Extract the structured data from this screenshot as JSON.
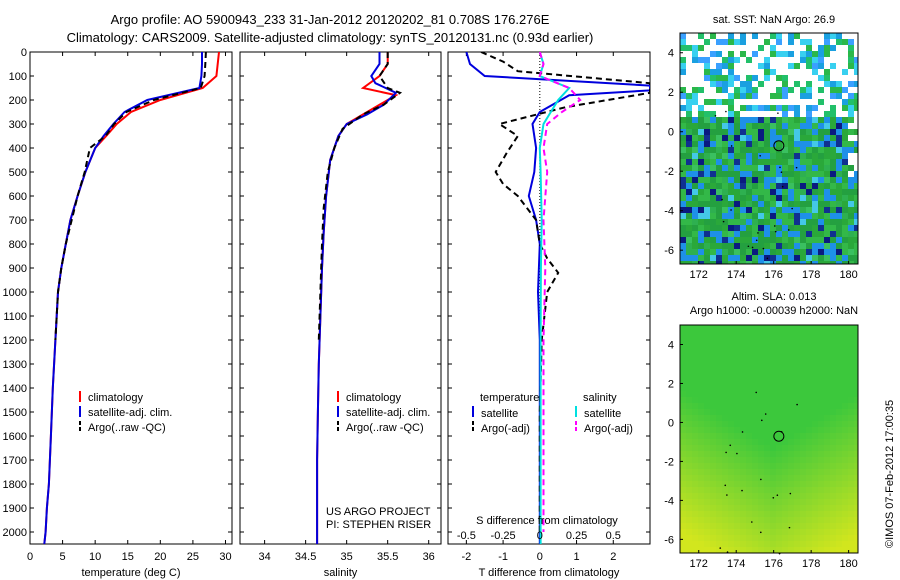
{
  "header": {
    "line1": "Argo profile: AO 5900943_233 31-Jan-2012 20120202_81 0.708S 176.276E",
    "line2": "Climatology: CARS2009. Satellite-adjusted climatology: synTS_20120131.nc (0.93d earlier)"
  },
  "right": {
    "sst_title": "sat. SST: NaN Argo: 26.9",
    "sla_title": "Altim. SLA: 0.013",
    "h_title": "Argo h1000: -0.00039 h2000: NaN"
  },
  "stamp": "©IMOS 07-Feb-2012 17:00:35",
  "credits": [
    "US ARGO PROJECT",
    "PI: STEPHEN RISER"
  ],
  "colors": {
    "climatology": "#ff0000",
    "satellite": "#0000dd",
    "argo": "#000000",
    "satellite_salinity": "#00e0e0",
    "argo_salinity": "#ff00ff"
  },
  "chart_data": [
    {
      "type": "line",
      "xlabel": "temperature (deg C)",
      "ylabel": "",
      "xlim": [
        0,
        31
      ],
      "ylim": [
        2050,
        0
      ],
      "xticks": [
        0,
        5,
        10,
        15,
        20,
        25,
        30
      ],
      "yticks": [
        0,
        100,
        200,
        300,
        400,
        500,
        600,
        700,
        800,
        900,
        1000,
        1100,
        1200,
        1300,
        1400,
        1500,
        1600,
        1700,
        1800,
        1900,
        2000
      ],
      "legend": [
        "climatology",
        "satellite-adj. clim.",
        "Argo(..raw -QC)"
      ],
      "series": [
        {
          "name": "climatology",
          "color": "#ff0000",
          "dash": "none",
          "x": [
            29.0,
            28.8,
            28.6,
            26.5,
            20.0,
            15.5,
            13.3,
            11.7,
            10.0,
            8.5,
            7.3,
            6.2,
            5.5,
            4.8,
            4.3,
            3.9,
            3.5,
            3.2,
            2.9,
            2.6,
            2.4,
            2.2
          ],
          "y": [
            0,
            50,
            100,
            150,
            200,
            250,
            300,
            350,
            400,
            500,
            600,
            700,
            800,
            900,
            1000,
            1200,
            1400,
            1600,
            1800,
            1900,
            2000,
            2050
          ]
        },
        {
          "name": "satellite-adj. clim.",
          "color": "#0000dd",
          "dash": "none",
          "x": [
            26.4,
            26.4,
            26.3,
            26.0,
            18.0,
            14.5,
            12.8,
            11.3,
            10.0,
            8.5,
            7.3,
            6.2,
            5.5,
            4.8,
            4.3,
            3.9,
            3.5,
            3.2,
            2.9,
            2.6,
            2.4,
            2.2
          ],
          "y": [
            0,
            50,
            100,
            150,
            200,
            250,
            300,
            350,
            400,
            500,
            600,
            700,
            800,
            900,
            1000,
            1200,
            1400,
            1600,
            1800,
            1900,
            2000,
            2050
          ]
        },
        {
          "name": "Argo(..raw -QC)",
          "color": "#000000",
          "dash": "6,4",
          "x": [
            27.0,
            26.9,
            26.8,
            26.2,
            19.0,
            14.8,
            12.9,
            11.6,
            9.2,
            8.4,
            7.3,
            6.4,
            5.5,
            4.8,
            4.3,
            3.9
          ],
          "y": [
            0,
            50,
            100,
            150,
            200,
            250,
            300,
            350,
            400,
            500,
            600,
            700,
            800,
            900,
            1000,
            1200
          ]
        }
      ]
    },
    {
      "type": "line",
      "xlabel": "salinity",
      "ylabel": "",
      "xlim": [
        33.7,
        36.15
      ],
      "ylim": [
        2050,
        0
      ],
      "xticks": [
        34,
        34.5,
        35,
        35.5,
        36
      ],
      "legend": [
        "climatology",
        "satellite-adj. clim.",
        "Argo(..raw -QC)"
      ],
      "series": [
        {
          "name": "climatology",
          "color": "#ff0000",
          "dash": "none",
          "x": [
            35.5,
            35.5,
            35.4,
            35.2,
            35.6,
            35.4,
            35.2,
            35.0,
            34.9,
            34.8,
            34.75,
            34.72,
            34.7,
            34.68,
            34.66,
            34.65,
            34.64,
            34.64,
            34.64,
            34.64
          ],
          "y": [
            0,
            50,
            100,
            150,
            180,
            220,
            260,
            300,
            350,
            450,
            600,
            750,
            900,
            1100,
            1300,
            1500,
            1700,
            1900,
            2000,
            2050
          ]
        },
        {
          "name": "satellite-adj. clim.",
          "color": "#0000dd",
          "dash": "none",
          "x": [
            35.4,
            35.4,
            35.3,
            35.35,
            35.6,
            35.45,
            35.25,
            35.0,
            34.9,
            34.8,
            34.75,
            34.72,
            34.7,
            34.68,
            34.66,
            34.65,
            34.64,
            34.64,
            34.64,
            34.64
          ],
          "y": [
            0,
            50,
            100,
            130,
            170,
            220,
            260,
            300,
            350,
            450,
            600,
            750,
            900,
            1100,
            1300,
            1500,
            1700,
            1900,
            2000,
            2050
          ]
        },
        {
          "name": "Argo(..raw -QC)",
          "color": "#000000",
          "dash": "6,4",
          "x": [
            35.5,
            35.5,
            35.4,
            35.5,
            35.65,
            35.45,
            35.2,
            34.95,
            34.85,
            34.77,
            34.72,
            34.7,
            34.68,
            34.66
          ],
          "y": [
            0,
            50,
            100,
            150,
            170,
            220,
            260,
            320,
            400,
            500,
            650,
            800,
            1000,
            1200
          ]
        }
      ]
    },
    {
      "type": "line",
      "xlabel": "T difference from climatology",
      "xlabel_top": "S difference from climatology",
      "xlim": [
        -2.5,
        3.0
      ],
      "ylim": [
        2050,
        0
      ],
      "xticks": [
        -2,
        -1,
        0,
        1,
        2
      ],
      "xticks_s": [
        -0.5,
        -0.25,
        0,
        0.25,
        0.5
      ],
      "legend_titles": [
        "temperature",
        "salinity"
      ],
      "legend": [
        "satellite",
        "Argo(-adj)",
        "satellite",
        "Argo(-adj)"
      ],
      "series": [
        {
          "name": "satellite",
          "group": "temperature",
          "color": "#0000dd",
          "dash": "none",
          "x": [
            -2.0,
            -1.9,
            -1.5,
            3.0,
            3.0,
            3.0,
            0.8,
            0.0,
            -0.2,
            -0.1,
            -0.15,
            -0.3,
            -0.1,
            0.0,
            -0.05,
            0.0,
            0.0,
            0.0,
            0.0,
            0.0
          ],
          "y": [
            0,
            50,
            100,
            140,
            150,
            160,
            180,
            250,
            300,
            400,
            500,
            600,
            700,
            800,
            1000,
            1200,
            1500,
            1800,
            2000,
            2050
          ]
        },
        {
          "name": "Argo(-adj)",
          "group": "temperature",
          "color": "#000000",
          "dash": "6,4",
          "x": [
            -1.6,
            -1.0,
            -0.6,
            3.0,
            3.0,
            3.0,
            0.7,
            -1.1,
            -0.6,
            -0.9,
            -1.2,
            -1.0,
            -0.6,
            -0.1,
            0.0,
            0.2,
            0.5,
            0.2,
            0.05,
            0.0,
            0.0,
            0.0
          ],
          "y": [
            0,
            40,
            80,
            130,
            150,
            170,
            230,
            300,
            350,
            420,
            500,
            550,
            600,
            700,
            800,
            860,
            920,
            1000,
            1200,
            1500,
            1800,
            2000
          ]
        },
        {
          "name": "satellite",
          "group": "salinity",
          "color": "#00e0e0",
          "dash": "none",
          "x": [
            0.0,
            0.1,
            0.0,
            0.8,
            0.5,
            0.3,
            0.1,
            0.0,
            0.02,
            0.05,
            0.03,
            0.02,
            0.02,
            0.02
          ],
          "y": [
            0,
            50,
            100,
            150,
            200,
            250,
            300,
            400,
            500,
            700,
            900,
            1200,
            1600,
            2050
          ]
        },
        {
          "name": "Argo(-adj)",
          "group": "salinity",
          "color": "#ff00ff",
          "dash": "6,4",
          "x": [
            0.0,
            0.1,
            0.0,
            0.8,
            1.1,
            0.6,
            0.2,
            0.1,
            0.2,
            0.1,
            0.15,
            0.1,
            0.1,
            0.1
          ],
          "y": [
            0,
            50,
            100,
            150,
            200,
            250,
            300,
            400,
            500,
            700,
            900,
            1200,
            1600,
            2000
          ]
        }
      ]
    },
    {
      "type": "heatmap",
      "title": "sat. SST: NaN Argo: 26.9",
      "xlim": [
        171,
        180.5
      ],
      "ylim": [
        -6.7,
        5
      ],
      "xticks": [
        172,
        174,
        176,
        178,
        180
      ],
      "yticks": [
        -6,
        -4,
        -2,
        0,
        2,
        4
      ],
      "marker": {
        "lon": 176.276,
        "lat": -0.708
      }
    },
    {
      "type": "heatmap",
      "title": "Altim. SLA: 0.013",
      "xlim": [
        171,
        180.5
      ],
      "ylim": [
        -6.7,
        5
      ],
      "xticks": [
        172,
        174,
        176,
        178,
        180
      ],
      "yticks": [
        -6,
        -4,
        -2,
        0,
        2,
        4
      ],
      "marker": {
        "lon": 176.276,
        "lat": -0.708
      }
    }
  ]
}
